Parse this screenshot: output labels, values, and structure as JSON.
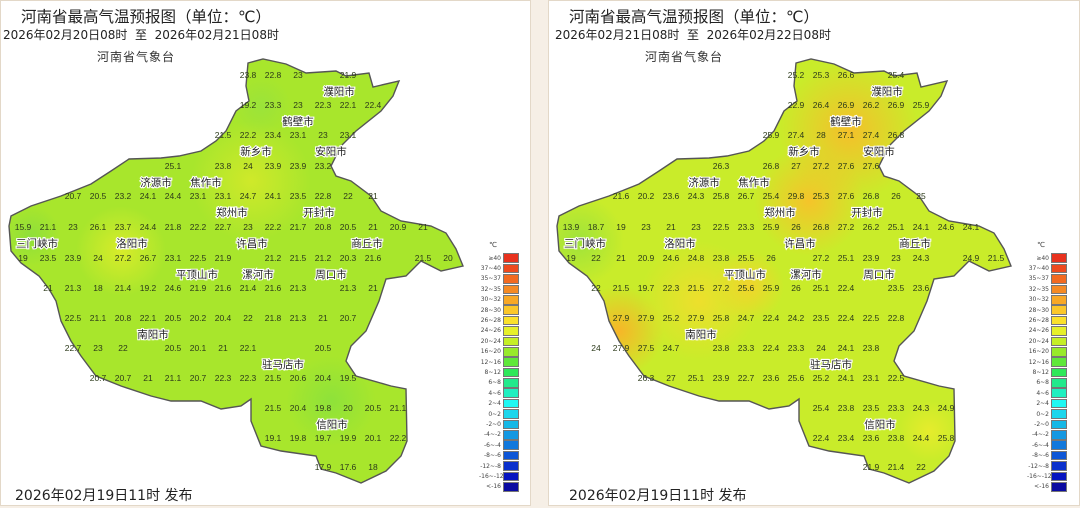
{
  "legend": {
    "unit": "℃",
    "entries": [
      {
        "label": "≥40",
        "color": "#e8321e"
      },
      {
        "label": "37~40",
        "color": "#ee4a1f"
      },
      {
        "label": "35~37",
        "color": "#f26a21"
      },
      {
        "label": "32~35",
        "color": "#f58a24"
      },
      {
        "label": "30~32",
        "color": "#f8a826"
      },
      {
        "label": "28~30",
        "color": "#fbc72a"
      },
      {
        "label": "26~28",
        "color": "#fbe12b"
      },
      {
        "label": "24~26",
        "color": "#e6f02a"
      },
      {
        "label": "20~24",
        "color": "#c5ef27"
      },
      {
        "label": "16~20",
        "color": "#98ea2a"
      },
      {
        "label": "12~16",
        "color": "#5fe83a"
      },
      {
        "label": "8~12",
        "color": "#2ee85a"
      },
      {
        "label": "6~8",
        "color": "#22ea8c"
      },
      {
        "label": "4~6",
        "color": "#1ff0c0"
      },
      {
        "label": "2~4",
        "color": "#1ff8f3"
      },
      {
        "label": "0~2",
        "color": "#1cd6ec"
      },
      {
        "label": "-2~0",
        "color": "#16b8e6"
      },
      {
        "label": "-4~-2",
        "color": "#1498e2"
      },
      {
        "label": "-6~-4",
        "color": "#1178dc"
      },
      {
        "label": "-8~-6",
        "color": "#0e56d6"
      },
      {
        "label": "-12~-8",
        "color": "#0a30cc"
      },
      {
        "label": "-16~-12",
        "color": "#0614c0"
      },
      {
        "label": "<-16",
        "color": "#0a0aa0"
      }
    ]
  },
  "cities": [
    "濮阳市",
    "鹤壁市",
    "安阳市",
    "新乡市",
    "济源市",
    "焦作市",
    "郑州市",
    "开封市",
    "商丘市",
    "三门峡市",
    "洛阳市",
    "平顶山市",
    "许昌市",
    "漯河市",
    "周口市",
    "南阳市",
    "驻马店市",
    "信阳市"
  ],
  "maps": [
    {
      "title": "河南省最高气温预报图（单位：℃）",
      "date_range": "2026年02月20日08时  至  2026年02月21日08时",
      "agency": "河南省气象台",
      "issued": "2026年02月19日11时 发布",
      "palette": "mild",
      "rows": [
        {
          "start": 9,
          "values": [
            "23.8",
            "22.8",
            "23",
            null,
            "21.9"
          ]
        },
        {
          "start": 9,
          "values": [
            "19.2",
            "23.3",
            "23",
            "22.3",
            "22.1",
            "22.4"
          ]
        },
        {
          "start": 8,
          "values": [
            "21.5",
            "22.2",
            "23.4",
            "23.1",
            "23",
            "23.1"
          ]
        },
        {
          "start": 6,
          "values": [
            "25.1",
            null,
            "23.8",
            "24",
            "23.9",
            "23.9",
            "23.2"
          ]
        },
        {
          "start": 2,
          "values": [
            "20.7",
            "20.5",
            "23.2",
            "24.1",
            "24.4",
            "23.1",
            "23.1",
            "24.7",
            "24.1",
            "23.5",
            "22.8",
            "22",
            "21"
          ]
        },
        {
          "start": 0,
          "values": [
            "15.9",
            "21.1",
            "23",
            "26.1",
            "23.7",
            "24.4",
            "21.8",
            "22.2",
            "22.7",
            "23",
            "22.2",
            "21.7",
            "20.8",
            "20.5",
            "21",
            "20.9",
            "21"
          ]
        },
        {
          "start": 0,
          "values": [
            "19",
            "23.5",
            "23.9",
            "24",
            "27.2",
            "26.7",
            "23.1",
            "22.5",
            "21.9",
            null,
            "21.2",
            "21.5",
            "21.2",
            "20.3",
            "21.6",
            null,
            "21.5",
            "20"
          ]
        },
        {
          "start": 1,
          "values": [
            "21",
            "21.3",
            "18",
            "21.4",
            "19.2",
            "24.6",
            "21.9",
            "21.6",
            "21.4",
            "21.6",
            "21.3",
            null,
            "21.3",
            "21"
          ]
        },
        {
          "start": 2,
          "values": [
            "22.5",
            "21.1",
            "20.8",
            "22.1",
            "20.5",
            "20.2",
            "20.4",
            "22",
            "21.8",
            "21.3",
            "21",
            "20.7"
          ]
        },
        {
          "start": 2,
          "values": [
            "22.7",
            "23",
            "22",
            null,
            "20.5",
            "20.1",
            "21",
            "22.1",
            null,
            null,
            "20.5"
          ]
        },
        {
          "start": 3,
          "values": [
            "20.7",
            "20.7",
            "21",
            "21.1",
            "20.7",
            "22.3",
            "22.3",
            "21.5",
            "20.6",
            "20.4",
            "19.5"
          ]
        },
        {
          "start": 10,
          "values": [
            "21.5",
            "20.4",
            "19.8",
            "20",
            "20.5",
            "21.1"
          ]
        },
        {
          "start": 10,
          "values": [
            "19.1",
            "19.8",
            "19.7",
            "19.9",
            "20.1",
            "22.2"
          ]
        },
        {
          "start": 12,
          "values": [
            "17.9",
            "17.6",
            "18"
          ]
        }
      ]
    },
    {
      "title": "河南省最高气温预报图（单位：℃）",
      "date_range": "2026年02月21日08时  至  2026年02月22日08时",
      "agency": "河南省气象台",
      "issued": "2026年02月19日11时 发布",
      "palette": "warm",
      "rows": [
        {
          "start": 9,
          "values": [
            "25.2",
            "25.3",
            "26.6",
            null,
            "25.4"
          ]
        },
        {
          "start": 9,
          "values": [
            "22.9",
            "26.4",
            "26.9",
            "26.2",
            "26.9",
            "25.9"
          ]
        },
        {
          "start": 8,
          "values": [
            "25.9",
            "27.4",
            "28",
            "27.1",
            "27.4",
            "26.8"
          ]
        },
        {
          "start": 6,
          "values": [
            "26.3",
            null,
            "26.8",
            "27",
            "27.2",
            "27.6",
            "27.6"
          ]
        },
        {
          "start": 2,
          "values": [
            "21.6",
            "20.2",
            "23.6",
            "24.3",
            "25.8",
            "26.7",
            "25.4",
            "29.8",
            "25.3",
            "27.6",
            "26.8",
            "26",
            "25"
          ]
        },
        {
          "start": 0,
          "values": [
            "13.9",
            "18.7",
            "19",
            "23",
            "21",
            "23",
            "22.5",
            "23.3",
            "25.9",
            "26",
            "26.8",
            "27.2",
            "26.2",
            "25.1",
            "24.1",
            "24.6",
            "24.1"
          ]
        },
        {
          "start": 0,
          "values": [
            "19",
            "22",
            "21",
            "20.9",
            "24.6",
            "24.8",
            "23.8",
            "25.5",
            "26",
            null,
            "27.2",
            "25.1",
            "23.9",
            "23",
            "24.3",
            null,
            "24.9",
            "21.5"
          ]
        },
        {
          "start": 1,
          "values": [
            "22",
            "21.5",
            "19.7",
            "22.3",
            "21.5",
            "27.2",
            "25.6",
            "25.9",
            "26",
            "25.1",
            "22.4",
            null,
            "23.5",
            "23.6"
          ]
        },
        {
          "start": 2,
          "values": [
            "27.9",
            "27.9",
            "25.2",
            "27.9",
            "25.8",
            "24.7",
            "22.4",
            "24.2",
            "23.5",
            "22.4",
            "22.5",
            "22.8"
          ]
        },
        {
          "start": 1,
          "values": [
            "24",
            "27.9",
            "27.5",
            "24.7",
            null,
            "23.8",
            "23.3",
            "22.4",
            "23.3",
            "24",
            "24.1",
            "23.8"
          ]
        },
        {
          "start": 3,
          "values": [
            "26.3",
            "27",
            "25.1",
            "23.9",
            "22.7",
            "23.6",
            "25.6",
            "25.2",
            "24.1",
            "23.1",
            "22.5"
          ]
        },
        {
          "start": 10,
          "values": [
            "25.4",
            "23.8",
            "23.5",
            "23.3",
            "24.3",
            "24.9"
          ]
        },
        {
          "start": 10,
          "values": [
            "22.4",
            "23.4",
            "23.6",
            "23.8",
            "24.4",
            "25.8"
          ]
        },
        {
          "start": 12,
          "values": [
            "21.9",
            "21.4",
            "22"
          ]
        }
      ]
    }
  ]
}
